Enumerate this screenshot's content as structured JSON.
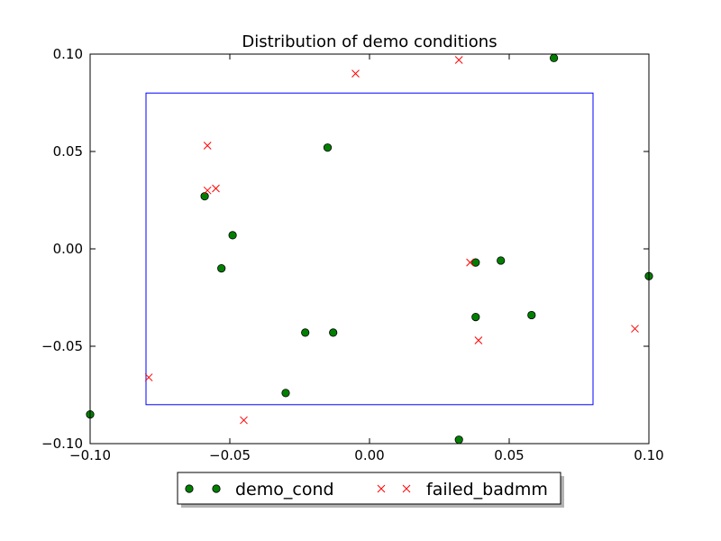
{
  "chart_data": {
    "type": "scatter",
    "title": "Distribution of demo conditions",
    "xlabel": "",
    "ylabel": "",
    "xlim": [
      -0.1,
      0.1
    ],
    "ylim": [
      -0.1,
      0.1
    ],
    "xticks": [
      -0.1,
      -0.05,
      0.0,
      0.05,
      0.1
    ],
    "xtick_labels": [
      "−0.10",
      "−0.05",
      "0.00",
      "0.05",
      "0.10"
    ],
    "yticks": [
      -0.1,
      -0.05,
      0.0,
      0.05,
      0.1
    ],
    "ytick_labels": [
      "−0.10",
      "−0.05",
      "0.00",
      "0.05",
      "0.10"
    ],
    "grid": false,
    "legend_position": "below-center",
    "box": {
      "x0": -0.08,
      "y0": -0.08,
      "x1": 0.08,
      "y1": 0.08,
      "color": "#0000ff"
    },
    "series": [
      {
        "name": "demo_cond",
        "marker": "circle",
        "color": "#008000",
        "points": [
          {
            "x": 0.066,
            "y": 0.098
          },
          {
            "x": -0.015,
            "y": 0.052
          },
          {
            "x": -0.059,
            "y": 0.027
          },
          {
            "x": -0.049,
            "y": 0.007
          },
          {
            "x": -0.053,
            "y": -0.01
          },
          {
            "x": 0.038,
            "y": -0.007
          },
          {
            "x": 0.047,
            "y": -0.006
          },
          {
            "x": 0.1,
            "y": -0.014
          },
          {
            "x": 0.038,
            "y": -0.035
          },
          {
            "x": 0.058,
            "y": -0.034
          },
          {
            "x": -0.023,
            "y": -0.043
          },
          {
            "x": -0.013,
            "y": -0.043
          },
          {
            "x": -0.03,
            "y": -0.074
          },
          {
            "x": -0.1,
            "y": -0.085
          },
          {
            "x": 0.032,
            "y": -0.098
          }
        ]
      },
      {
        "name": "failed_badmm",
        "marker": "x",
        "color": "#ff0000",
        "points": [
          {
            "x": -0.005,
            "y": 0.09
          },
          {
            "x": 0.032,
            "y": 0.097
          },
          {
            "x": -0.058,
            "y": 0.053
          },
          {
            "x": -0.058,
            "y": 0.03
          },
          {
            "x": -0.055,
            "y": 0.031
          },
          {
            "x": 0.036,
            "y": -0.007
          },
          {
            "x": 0.039,
            "y": -0.047
          },
          {
            "x": 0.095,
            "y": -0.041
          },
          {
            "x": -0.079,
            "y": -0.066
          },
          {
            "x": -0.045,
            "y": -0.088
          }
        ]
      }
    ]
  }
}
